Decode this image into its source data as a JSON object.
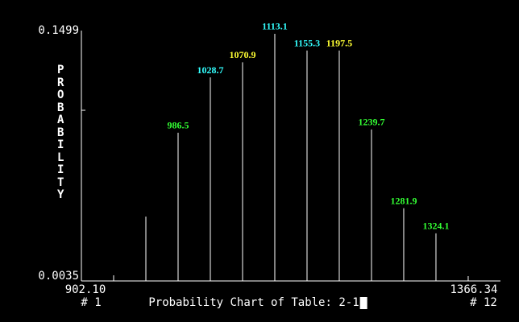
{
  "chart_data": {
    "type": "spike",
    "title": "Probability Chart of Table: 2-1",
    "y_label": "PROBABILITY",
    "first_index": "# 1",
    "last_index": "# 12",
    "x": [
      902.1,
      944.3,
      986.5,
      1028.7,
      1070.9,
      1113.1,
      1155.3,
      1197.5,
      1239.7,
      1281.9,
      1324.1,
      1366.3
    ],
    "values": [
      0.004,
      0.039,
      0.089,
      0.122,
      0.131,
      0.148,
      0.138,
      0.138,
      0.091,
      0.044,
      0.029,
      0.0035
    ],
    "point_labels": [
      null,
      null,
      "986.5",
      "1028.7",
      "1070.9",
      "1113.1",
      "1155.3",
      "1197.5",
      "1239.7",
      "1281.9",
      "1324.1",
      null
    ],
    "label_colors": [
      null,
      null,
      "#33ff33",
      "#33ffff",
      "#ffff33",
      "#33ffff",
      "#33ffff",
      "#ffff33",
      "#33ff33",
      "#33ff33",
      "#33ff33",
      null
    ],
    "color": "#ffffff",
    "xlim": [
      902.1,
      1366.34
    ],
    "xticks": [
      {
        "value": 902.1,
        "label": "902.10"
      },
      {
        "value": 1366.34,
        "label": "1366.34"
      }
    ],
    "ylim": [
      0.0035,
      0.1499
    ],
    "yticks": [
      0.1499,
      0.0035
    ]
  }
}
